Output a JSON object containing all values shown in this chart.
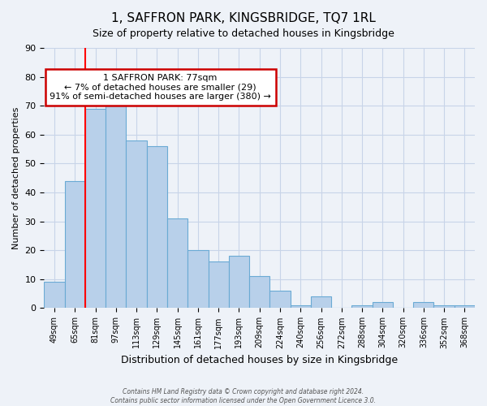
{
  "title": "1, SAFFRON PARK, KINGSBRIDGE, TQ7 1RL",
  "subtitle": "Size of property relative to detached houses in Kingsbridge",
  "xlabel": "Distribution of detached houses by size in Kingsbridge",
  "ylabel": "Number of detached properties",
  "categories": [
    "49sqm",
    "65sqm",
    "81sqm",
    "97sqm",
    "113sqm",
    "129sqm",
    "145sqm",
    "161sqm",
    "177sqm",
    "193sqm",
    "209sqm",
    "224sqm",
    "240sqm",
    "256sqm",
    "272sqm",
    "288sqm",
    "304sqm",
    "320sqm",
    "336sqm",
    "352sqm",
    "368sqm"
  ],
  "values": [
    9,
    44,
    69,
    70,
    58,
    56,
    31,
    20,
    16,
    18,
    11,
    6,
    1,
    4,
    0,
    1,
    2,
    0,
    2,
    1,
    1
  ],
  "bar_color": "#b8d0ea",
  "bar_edge_color": "#6aaad4",
  "annotation_line1": "1 SAFFRON PARK: 77sqm",
  "annotation_line2": "← 7% of detached houses are smaller (29)",
  "annotation_line3": "91% of semi-detached houses are larger (380) →",
  "annotation_box_facecolor": "#ffffff",
  "annotation_box_edgecolor": "#cc0000",
  "red_line_idx": 1.5,
  "ylim": [
    0,
    90
  ],
  "yticks": [
    0,
    10,
    20,
    30,
    40,
    50,
    60,
    70,
    80,
    90
  ],
  "grid_color": "#c8d4e8",
  "background_color": "#eef2f8",
  "title_fontsize": 11,
  "subtitle_fontsize": 9,
  "footer_line1": "Contains HM Land Registry data © Crown copyright and database right 2024.",
  "footer_line2": "Contains public sector information licensed under the Open Government Licence 3.0."
}
